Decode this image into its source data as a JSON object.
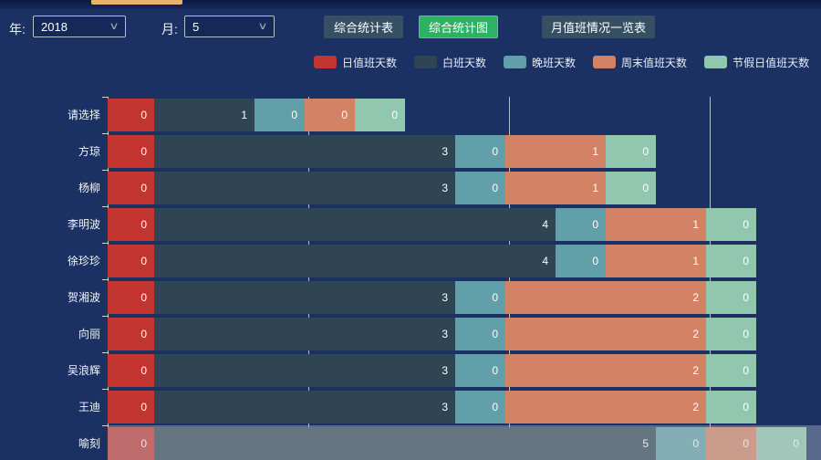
{
  "header": {
    "tab_indicator_color": "#e7b26a"
  },
  "controls": {
    "year_label": "年:",
    "year_value": "2018",
    "month_label": "月:",
    "month_value": "5",
    "buttons": [
      {
        "label": "综合统计表",
        "active": false
      },
      {
        "label": "综合统计图",
        "active": true
      },
      {
        "label": "月值班情况一览表",
        "active": false
      }
    ],
    "button_color": "#374f63",
    "active_button_color": "#2eb163"
  },
  "legend": {
    "items": [
      {
        "label": "日值班天数",
        "color": "#c23531"
      },
      {
        "label": "白班天数",
        "color": "#2f4554"
      },
      {
        "label": "晚班天数",
        "color": "#61a0a8"
      },
      {
        "label": "周末值班天数",
        "color": "#d48265"
      },
      {
        "label": "节假日值班天数",
        "color": "#91c7ae"
      }
    ]
  },
  "chart_data": {
    "type": "bar",
    "orientation": "horizontal",
    "stacked": true,
    "title": "",
    "legend_position": "top",
    "categories": [
      "请选择",
      "方琼",
      "杨柳",
      "李明波",
      "徐珍珍",
      "贺湘波",
      "向丽",
      "吴浪辉",
      "王迪",
      "喻刻"
    ],
    "series": [
      {
        "name": "日值班天数",
        "color": "#c23531",
        "values": [
          0,
          0,
          0,
          0,
          0,
          0,
          0,
          0,
          0,
          0
        ],
        "bar_units": [
          0.46,
          0.46,
          0.46,
          0.46,
          0.46,
          0.46,
          0.46,
          0.46,
          0.46,
          0.46
        ]
      },
      {
        "name": "白班天数",
        "color": "#2f4554",
        "values": [
          1,
          3,
          3,
          4,
          4,
          3,
          3,
          3,
          3,
          5
        ],
        "bar_units": [
          1,
          3,
          3,
          4,
          4,
          3,
          3,
          3,
          3,
          5
        ]
      },
      {
        "name": "晚班天数",
        "color": "#61a0a8",
        "values": [
          0,
          0,
          0,
          0,
          0,
          0,
          0,
          0,
          0,
          0
        ],
        "bar_units": [
          0.5,
          0.5,
          0.5,
          0.5,
          0.5,
          0.5,
          0.5,
          0.5,
          0.5,
          0.5
        ]
      },
      {
        "name": "周末值班天数",
        "color": "#d48265",
        "values": [
          0,
          1,
          1,
          1,
          1,
          2,
          2,
          2,
          2,
          0
        ],
        "bar_units": [
          0.5,
          1,
          1,
          1,
          1,
          2,
          2,
          2,
          2,
          0.5
        ]
      },
      {
        "name": "节假日值班天数",
        "color": "#91c7ae",
        "values": [
          0,
          0,
          0,
          0,
          0,
          0,
          0,
          0,
          0,
          0
        ],
        "bar_units": [
          0.5,
          0.5,
          0.5,
          0.5,
          0.5,
          0.5,
          0.5,
          0.5,
          0.5,
          0.5
        ]
      }
    ],
    "x_gridline_values": [
      2,
      4,
      6
    ],
    "x_axis_labels_visible": false,
    "highlighted_category": "喻刻"
  }
}
